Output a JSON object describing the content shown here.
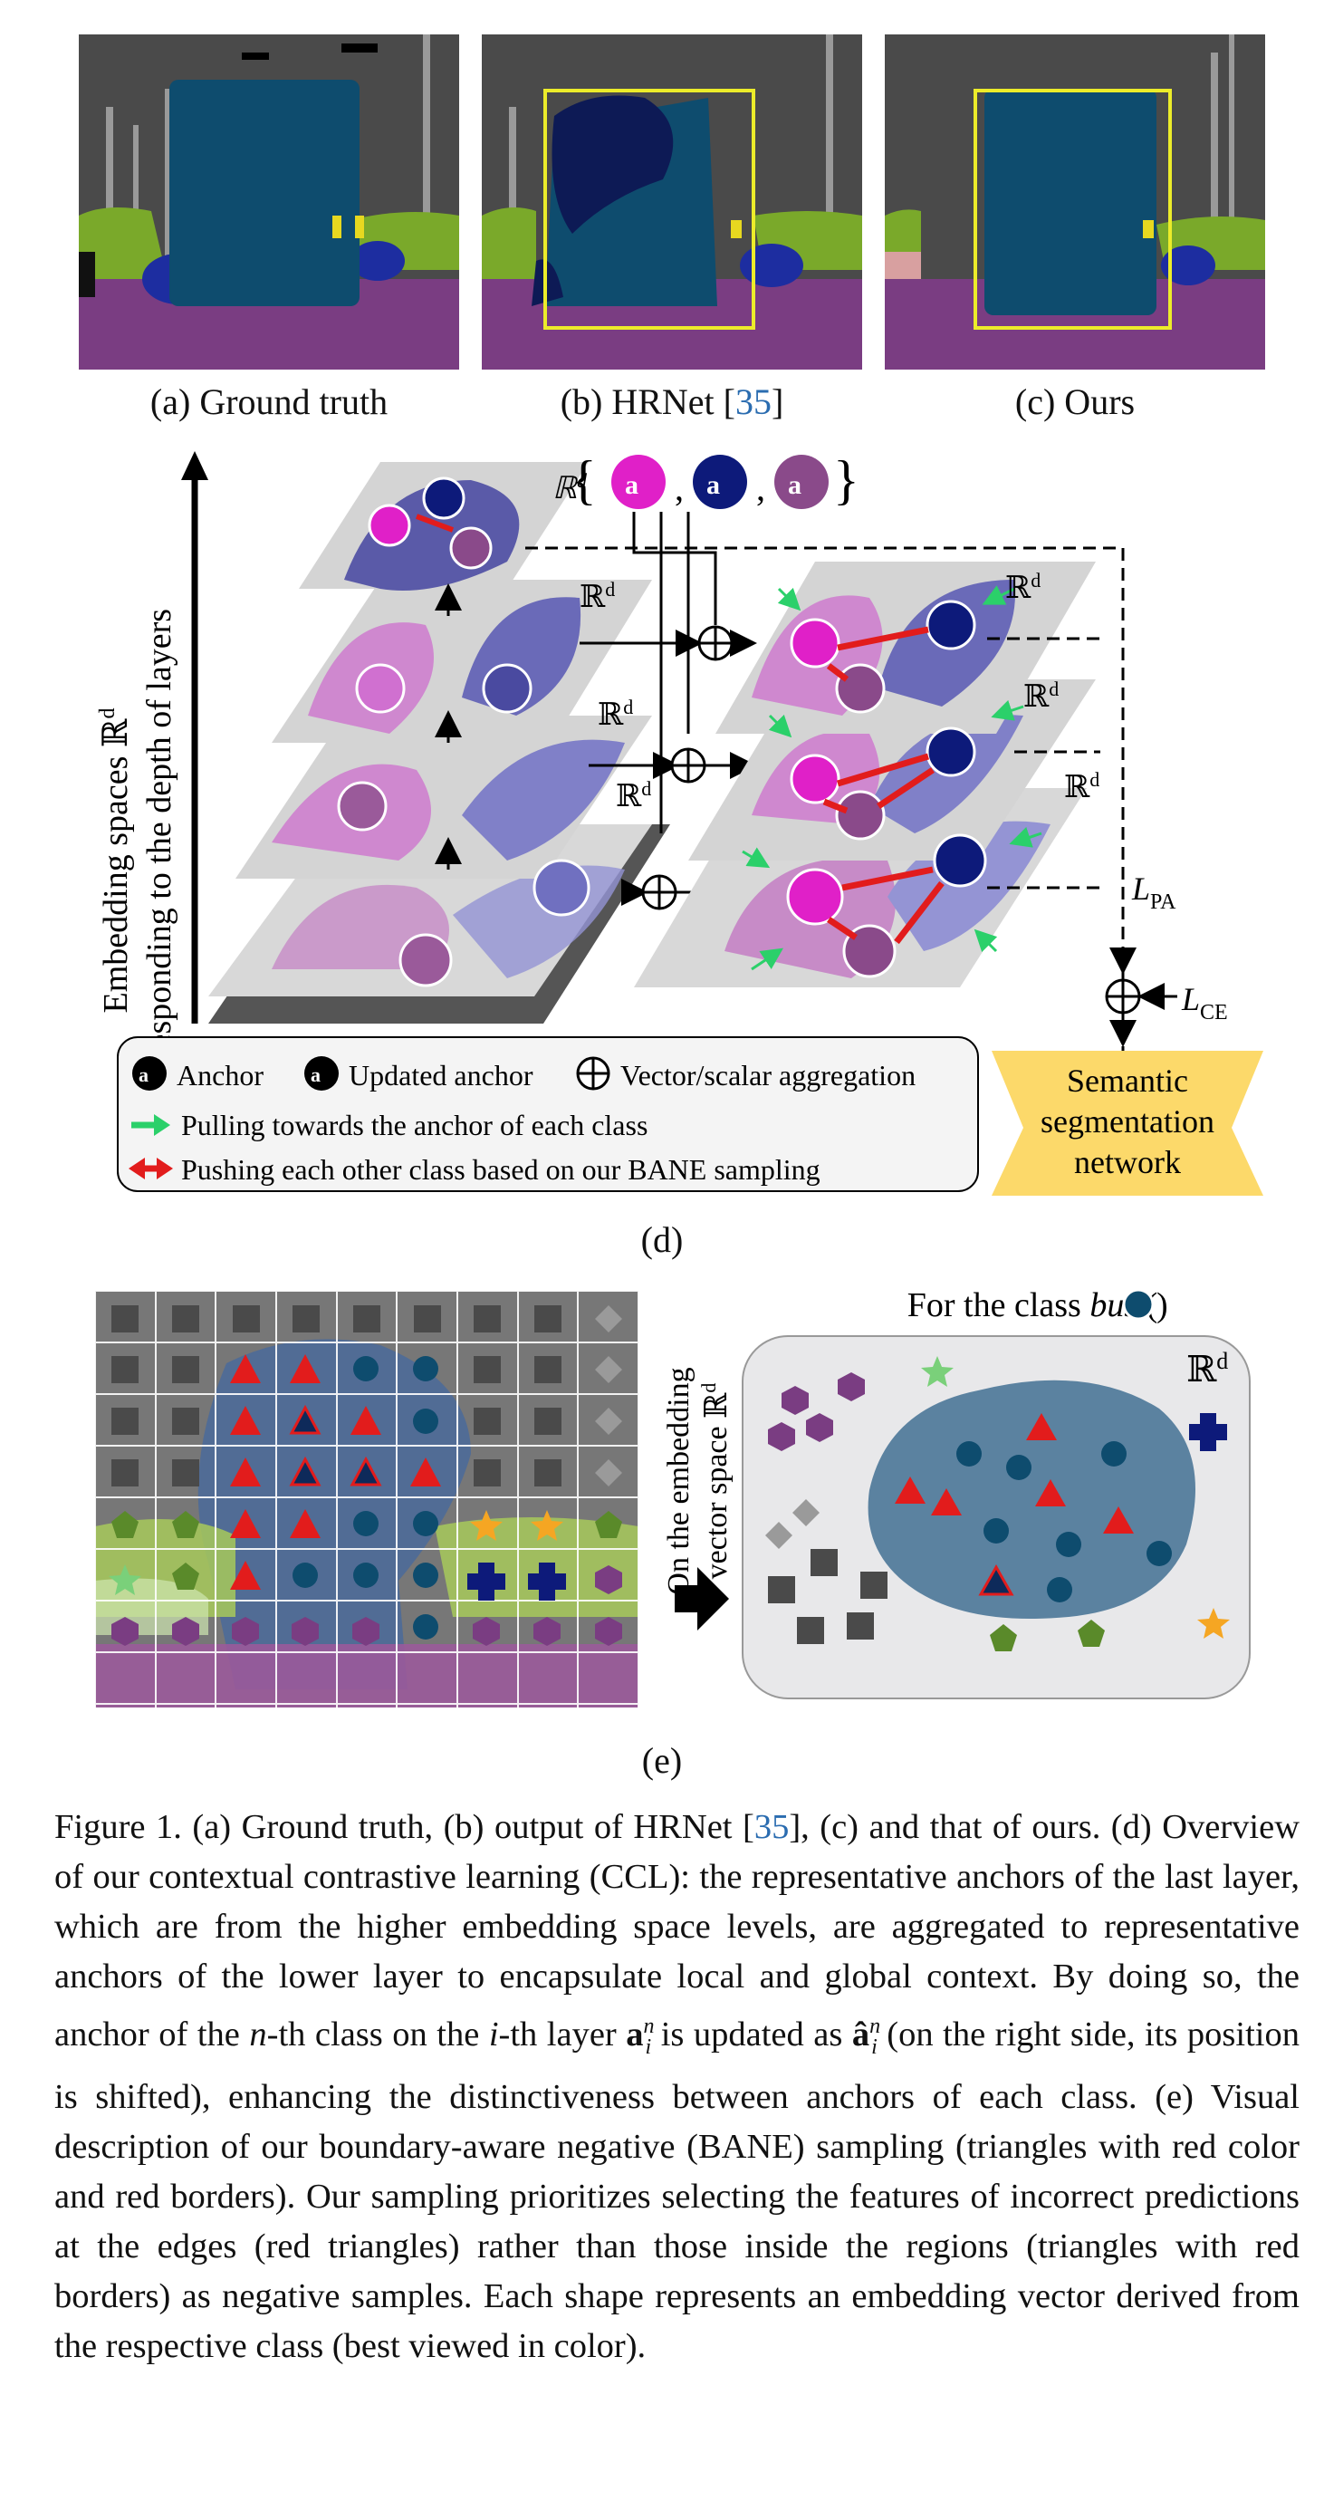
{
  "panels": {
    "a_label": "(a) Ground truth",
    "b_label_prefix": "(b) HRNet [",
    "b_ref": "35",
    "b_label_suffix": "]",
    "c_label": "(c) Ours",
    "d_label": "(d)",
    "e_label": "(e)"
  },
  "diagram_d": {
    "axis_label_line1": "Embedding spaces ℝ",
    "axis_label_sup": "d",
    "axis_label_line2": "Corresponding to the depth of layers",
    "space_label": "ℝ",
    "space_sup": "d",
    "anchor_set": [
      "a",
      "a",
      "a"
    ],
    "loss_pa": "L",
    "loss_pa_sub": "PA",
    "loss_ce": "L",
    "loss_ce_sub": "CE",
    "network_line1": "Semantic",
    "network_line2": "segmentation",
    "network_line3": "network",
    "legend_anchor": "Anchor",
    "legend_updated": "Updated anchor",
    "legend_aggregation": "Vector/scalar aggregation",
    "legend_pull": "Pulling towards the anchor of each class",
    "legend_push": "Pushing each other class based on our BANE sampling",
    "colors": {
      "magenta": "#e020c8",
      "navy": "#0d1a7a",
      "purple": "#8a4a8a",
      "bus": "#0e4c6e",
      "yellow": "#fcd96a"
    }
  },
  "diagram_e": {
    "arrow_label_line1": "On the embedding",
    "arrow_label_line2": "vector space ℝ",
    "arrow_label_sup": "d",
    "title_prefix": "For the class ",
    "title_class": "bus",
    "space_label": "ℝ",
    "space_sup": "d"
  },
  "caption": {
    "p1": "Figure 1. (a) Ground truth, (b) output of HRNet [",
    "ref1": "35",
    "p2": "], (c) and that of ours. (d) Overview of our contextual contrastive learning (CCL): the representative anchors of the last layer, which are from the higher embedding space levels, are aggregated to representative anchors of the lower layer to encapsulate local and global context.  By doing so, the anchor of the ",
    "n": "n",
    "p3": "-th class on the ",
    "i": "i",
    "p4": "-th layer ",
    "p5": " is updated as ",
    "p6": " (on the right side, its position is shifted),  enhancing the distinctiveness between anchors of each class. (e) Visual description of our boundary-aware negative (BANE) sampling (triangles with red color and red borders). Our sampling prioritizes selecting the features of incorrect predictions at the edges (red triangles) rather than those inside the regions (triangles with red borders) as negative samples. Each shape represents an embedding vector derived from the respective class (best viewed in color)."
  }
}
